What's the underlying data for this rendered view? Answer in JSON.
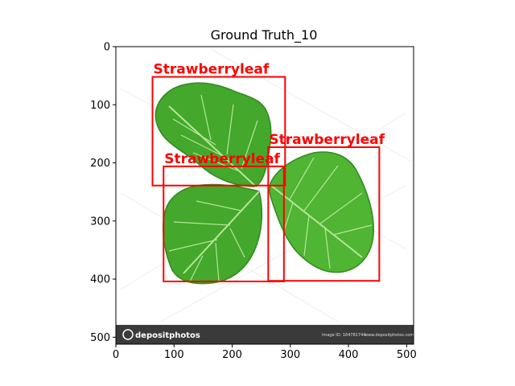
{
  "figure": {
    "title": "Ground Truth_10"
  },
  "axes": {
    "x_ticks": [
      "0",
      "100",
      "200",
      "300",
      "400",
      "500"
    ],
    "y_ticks": [
      "0",
      "100",
      "200",
      "300",
      "400",
      "500"
    ],
    "xlim": [
      0,
      512
    ],
    "ylim": [
      512,
      0
    ]
  },
  "boxes": [
    {
      "label": "Strawberryleaf",
      "x1": 63,
      "y1": 52,
      "x2": 291,
      "y2": 239,
      "color": "#ff0000"
    },
    {
      "label": "Strawberryleaf",
      "x1": 82,
      "y1": 206,
      "x2": 289,
      "y2": 404,
      "color": "#ff0000"
    },
    {
      "label": "Strawberryleaf",
      "x1": 262,
      "y1": 173,
      "x2": 453,
      "y2": 403,
      "color": "#ff0000"
    }
  ],
  "image": {
    "watermark_logo": "depositphotos",
    "footer_id": "Image ID: 164781744",
    "footer_site": "www.depositphotos.com",
    "colors": {
      "footer_bg": "#3a3a3a",
      "leaf_dark": "#2f8a1f",
      "leaf_mid": "#43a82c",
      "leaf_light": "#6cc34a",
      "vein": "#b9e49a"
    }
  }
}
